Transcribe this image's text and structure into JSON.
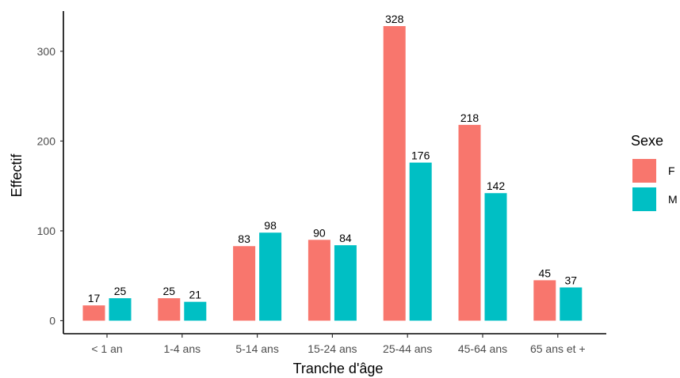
{
  "chart_data": {
    "type": "bar",
    "xlabel": "Tranche d'âge",
    "ylabel": "Effectif",
    "categories": [
      "< 1 an",
      "1-4 ans",
      "5-14 ans",
      "15-24 ans",
      "25-44 ans",
      "45-64 ans",
      "65 ans et +"
    ],
    "series": [
      {
        "name": "F",
        "color": "#F8766D",
        "values": [
          17,
          25,
          83,
          90,
          328,
          218,
          45
        ]
      },
      {
        "name": "M",
        "color": "#00BFC4",
        "values": [
          25,
          21,
          98,
          84,
          176,
          142,
          37
        ]
      }
    ],
    "yticks": [
      0,
      100,
      200,
      300
    ],
    "ylim": [
      0,
      342
    ],
    "grid": false,
    "legend": {
      "title": "Sexe",
      "position": "right"
    }
  }
}
